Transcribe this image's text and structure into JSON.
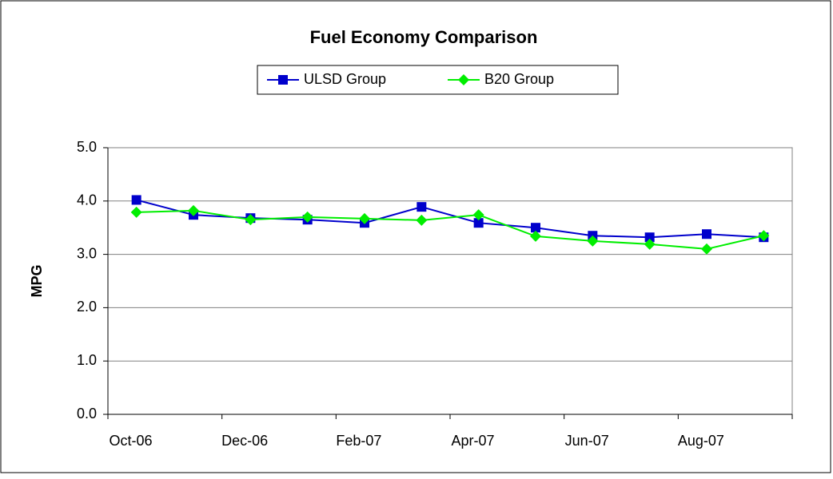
{
  "chart_data": {
    "type": "line",
    "title": "Fuel Economy Comparison",
    "y_label": "MPG",
    "categories": [
      "Oct-06",
      null,
      "Dec-06",
      null,
      "Feb-07",
      null,
      "Apr-07",
      null,
      "Jun-07",
      null,
      "Aug-07",
      null
    ],
    "series": [
      {
        "name": "ULSD Group",
        "color": "#0000cc",
        "marker": "square",
        "values": [
          4.02,
          3.74,
          3.68,
          3.65,
          3.59,
          3.89,
          3.59,
          3.5,
          3.35,
          3.32,
          3.38,
          3.32
        ]
      },
      {
        "name": "B20 Group",
        "color": "#00ee00",
        "marker": "diamond",
        "values": [
          3.79,
          3.82,
          3.65,
          3.7,
          3.67,
          3.64,
          3.74,
          3.34,
          3.25,
          3.19,
          3.1,
          3.35
        ]
      }
    ],
    "ylim": [
      0,
      5
    ],
    "yticks": [
      {
        "value": 0,
        "label": "0.0"
      },
      {
        "value": 1,
        "label": "1.0"
      },
      {
        "value": 2,
        "label": "2.0"
      },
      {
        "value": 3,
        "label": "3.0"
      },
      {
        "value": 4,
        "label": "4.0"
      },
      {
        "value": 5,
        "label": "5.0"
      }
    ],
    "grid": true,
    "legend": "top"
  }
}
